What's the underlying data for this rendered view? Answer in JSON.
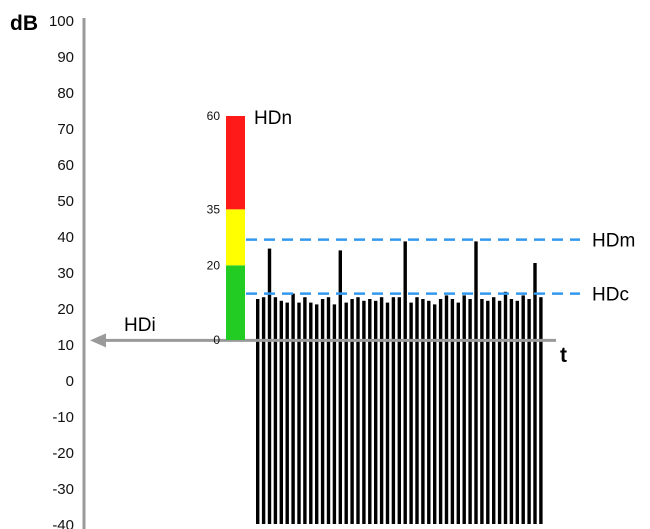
{
  "chart_data": {
    "type": "bar",
    "y_axis": {
      "unit_label": "dB",
      "ticks": [
        "100",
        "90",
        "80",
        "70",
        "60",
        "50",
        "40",
        "30",
        "20",
        "10",
        "0",
        "-10",
        "-20",
        "-30",
        "-40"
      ],
      "range": [
        -40,
        100
      ]
    },
    "x_axis": {
      "label": "t"
    },
    "level_scale": {
      "ticks": [
        "0",
        "20",
        "35",
        "60"
      ],
      "segments": [
        {
          "from": 0,
          "to": 20,
          "color": "#22cc22"
        },
        {
          "from": 20,
          "to": 35,
          "color": "#ffff00"
        },
        {
          "from": 35,
          "to": 60,
          "color": "#ff1a1a"
        }
      ],
      "label": "HDn"
    },
    "thresholds": [
      {
        "label": "HDm",
        "value": 39,
        "color": "#3399ee"
      },
      {
        "label": "HDc",
        "value": 24,
        "color": "#3399ee"
      }
    ],
    "baseline": {
      "label": "HDi",
      "value": 11
    },
    "bars_bottom": -40,
    "bar_tops": [
      22.5,
      23,
      36.5,
      23,
      22,
      21.5,
      24,
      21.5,
      23,
      21.5,
      21,
      22.5,
      23,
      21,
      36,
      21.5,
      22.5,
      23,
      22,
      22.5,
      22,
      23,
      21.5,
      23,
      23,
      38.5,
      21.5,
      23,
      22.5,
      22,
      21,
      22.5,
      23.5,
      22.5,
      21.5,
      23.5,
      22.5,
      38.5,
      22.5,
      22,
      23,
      22,
      24.5,
      22.5,
      22,
      23.5,
      22.5,
      32.5,
      23
    ]
  }
}
